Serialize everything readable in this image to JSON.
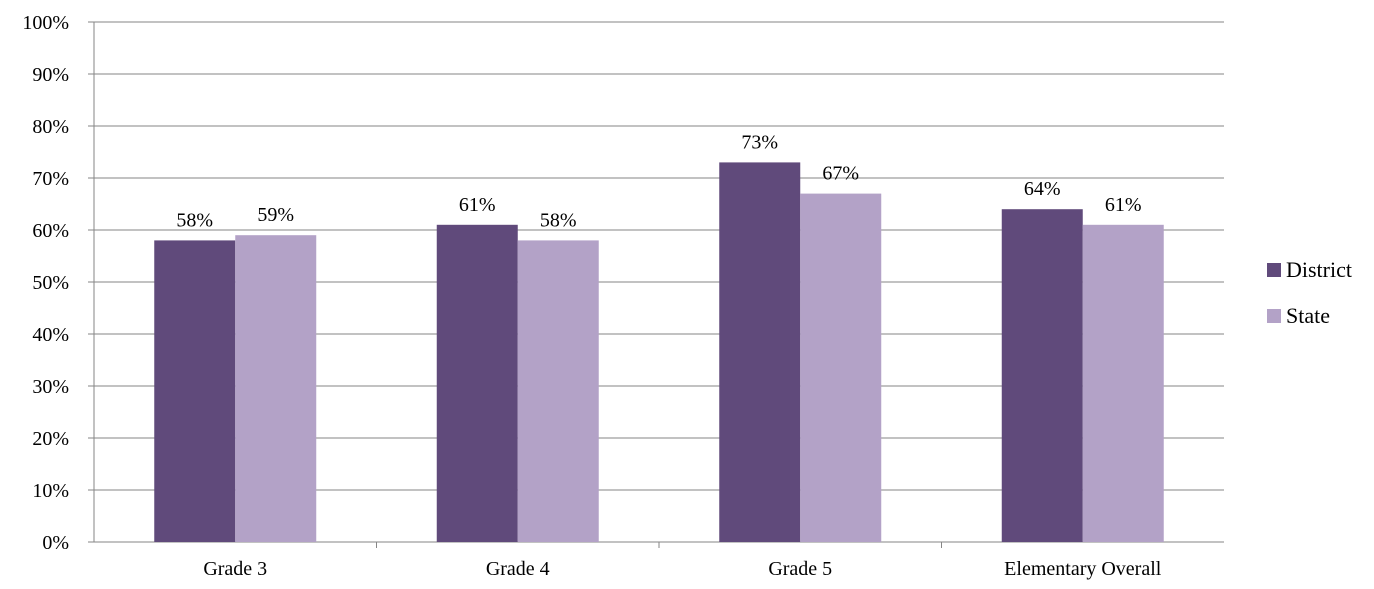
{
  "chart_data": {
    "type": "bar",
    "title": "",
    "xlabel": "",
    "ylabel": "",
    "categories": [
      "Grade 3",
      "Grade 4",
      "Grade 5",
      "Elementary Overall"
    ],
    "series": [
      {
        "name": "District",
        "values": [
          58,
          61,
          73,
          64
        ],
        "color": "#604a7b"
      },
      {
        "name": "State",
        "values": [
          59,
          58,
          67,
          61
        ],
        "color": "#b3a2c7"
      }
    ],
    "data_labels": [
      [
        "58%",
        "61%",
        "73%",
        "64%"
      ],
      [
        "59%",
        "58%",
        "67%",
        "61%"
      ]
    ],
    "ylim": [
      0,
      100
    ],
    "yticks": [
      0,
      10,
      20,
      30,
      40,
      50,
      60,
      70,
      80,
      90,
      100
    ],
    "ytick_labels": [
      "0%",
      "10%",
      "20%",
      "30%",
      "40%",
      "50%",
      "60%",
      "70%",
      "80%",
      "90%",
      "100%"
    ],
    "grid": "horizontal",
    "legend_position": "right"
  }
}
